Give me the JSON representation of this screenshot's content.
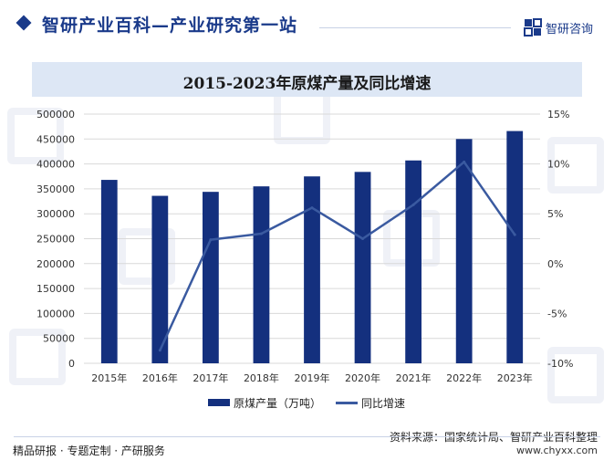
{
  "header": {
    "title": "智研产业百科—产业研究第一站",
    "brand_name": "智研咨询"
  },
  "colors": {
    "brand": "#1a3a8a",
    "bar": "#14307e",
    "line": "#3a5aa0",
    "title_band": "#dde7f5"
  },
  "chart_data": {
    "type": "bar",
    "title": "2015-2023年原煤产量及同比增速",
    "categories": [
      "2015年",
      "2016年",
      "2017年",
      "2018年",
      "2019年",
      "2020年",
      "2021年",
      "2022年",
      "2023年"
    ],
    "series": [
      {
        "name": "原煤产量（万吨）",
        "type": "bar",
        "axis": "left",
        "values": [
          368000,
          336000,
          344000,
          355000,
          375000,
          384000,
          407000,
          450000,
          466000
        ]
      },
      {
        "name": "同比增速",
        "type": "line",
        "axis": "right",
        "values": [
          null,
          -8.7,
          2.4,
          3.0,
          5.6,
          2.5,
          5.9,
          10.2,
          2.9
        ]
      }
    ],
    "y_left": {
      "lim": [
        0,
        500000
      ],
      "ticks": [
        "500000",
        "450000",
        "400000",
        "350000",
        "300000",
        "250000",
        "200000",
        "150000",
        "100000",
        "50000",
        "0"
      ]
    },
    "y_right": {
      "lim": [
        -10,
        15
      ],
      "ticks": [
        "15%",
        "10%",
        "5%",
        "0%",
        "-5%",
        "-10%"
      ]
    },
    "grid": true,
    "legend": "bottom-center"
  },
  "footer": {
    "source": "资料来源：国家统计局、智研产业百科整理",
    "tagline": "精品研报 · 专题定制 · 产研服务",
    "url": "www.chyxx.com"
  }
}
